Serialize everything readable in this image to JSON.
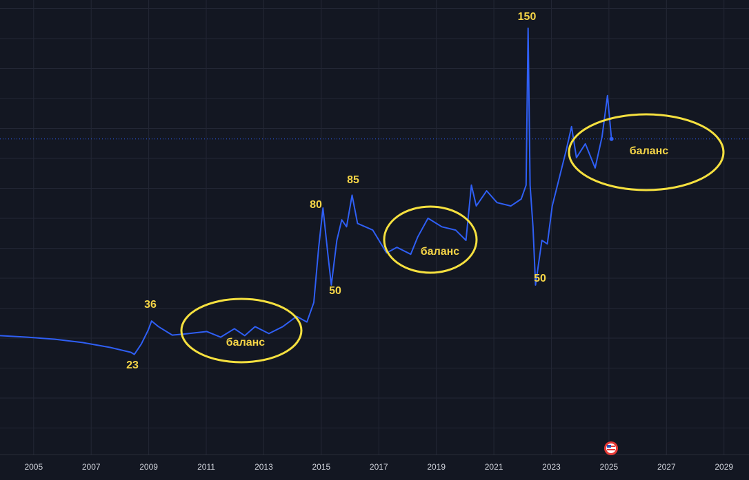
{
  "chart_data": {
    "type": "line",
    "x": [
      2003.83,
      2004.79,
      2005.74,
      2006.7,
      2007.66,
      2008.38,
      2008.5,
      2008.74,
      2008.98,
      2009.1,
      2009.34,
      2009.82,
      2010.3,
      2011.02,
      2011.5,
      2011.98,
      2012.34,
      2012.7,
      2013.18,
      2013.66,
      2014.14,
      2014.5,
      2014.74,
      2014.91,
      2015.06,
      2015.23,
      2015.35,
      2015.54,
      2015.71,
      2015.88,
      2016.07,
      2016.26,
      2016.79,
      2017.27,
      2017.63,
      2018.11,
      2018.35,
      2018.71,
      2019.19,
      2019.67,
      2020.03,
      2020.22,
      2020.39,
      2020.75,
      2021.11,
      2021.59,
      2021.95,
      2022.12,
      2022.19,
      2022.26,
      2022.36,
      2022.45,
      2022.67,
      2022.86,
      2023.03,
      2023.27,
      2023.51,
      2023.7,
      2023.87,
      2024.18,
      2024.52,
      2024.76,
      2024.95,
      2025.09
    ],
    "values": [
      30.3,
      29.7,
      28.9,
      27.6,
      25.7,
      23.8,
      23,
      27,
      32.4,
      36,
      33.8,
      30.5,
      31,
      31.9,
      29.7,
      33,
      30.3,
      33.8,
      31.1,
      33.8,
      37.8,
      35.6,
      43.2,
      64.7,
      80,
      62,
      50,
      67.4,
      75.4,
      72.7,
      85,
      74,
      71.4,
      62.5,
      64.7,
      62,
      68.7,
      76,
      72.7,
      71.4,
      67.4,
      88.9,
      80.8,
      86.7,
      82.1,
      80.8,
      83.5,
      88.9,
      150,
      88.9,
      72.7,
      50,
      67.4,
      66,
      80.8,
      91.5,
      102.3,
      111.7,
      99.6,
      105,
      95.6,
      107.7,
      123.8,
      106.9
    ],
    "color": "#2f5ff5",
    "xlim": [
      2003.83,
      2029.87
    ],
    "xticks": [
      2005,
      2007,
      2009,
      2011,
      2013,
      2015,
      2017,
      2019,
      2021,
      2023,
      2025,
      2027,
      2029
    ],
    "ylim": [
      -16,
      161
    ],
    "grid": true,
    "annotations": [
      "36",
      "23",
      "баланс",
      "80",
      "50",
      "85",
      "баланс",
      "150",
      "50",
      "баланс"
    ]
  }
}
